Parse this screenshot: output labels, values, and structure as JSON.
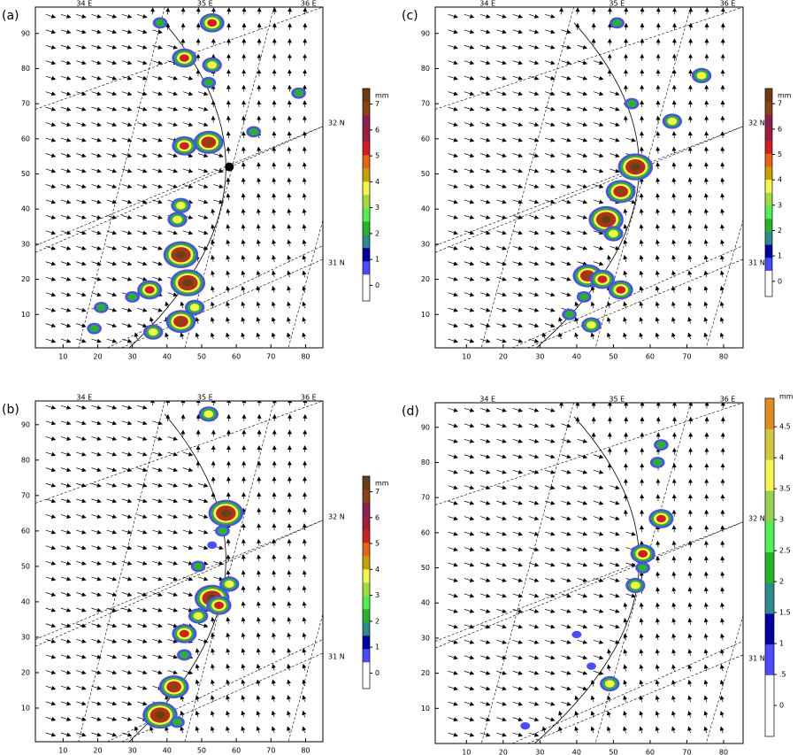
{
  "panels": [
    {
      "label": "(a)",
      "xlim": [
        2,
        85
      ],
      "ylim": [
        0.5,
        97.5
      ],
      "xticks": [
        10,
        20,
        30,
        40,
        50,
        60,
        70,
        80
      ],
      "yticks": [
        10,
        20,
        30,
        40,
        50,
        60,
        70,
        80,
        90
      ],
      "lon_labels": [
        "34 E",
        "35 E",
        "36 E"
      ],
      "lat_labels": [
        "32 N",
        "31 N"
      ],
      "colorbar": {
        "unit": "mm",
        "lim": [
          -0.6,
          7.6
        ],
        "ticks": [
          0,
          1,
          2,
          3,
          4,
          5,
          6,
          7
        ],
        "colors": [
          "#ffffff",
          "#ffffff",
          "#4b4bff",
          "#0000a0",
          "#2e8b8b",
          "#28b428",
          "#50f050",
          "#a0dc3c",
          "#f5f54b",
          "#c8a000",
          "#e66414",
          "#d21e1e",
          "#a01e3c",
          "#8c1e50",
          "#8b4513",
          "#6e3c14"
        ]
      }
    },
    {
      "label": "(c)",
      "xlim": [
        1.5,
        85.3
      ],
      "ylim": [
        0.5,
        97.5
      ],
      "xticks": [
        10,
        20,
        30,
        40,
        50,
        60,
        70,
        80
      ],
      "yticks": [
        10,
        20,
        30,
        40,
        50,
        60,
        70,
        80,
        90
      ],
      "lon_labels": [
        "34 E",
        "35 E",
        "36 E"
      ],
      "lat_labels": [
        "32 N",
        "31 N"
      ],
      "colorbar": {
        "unit": "mm",
        "lim": [
          -0.6,
          7.6
        ],
        "ticks": [
          0,
          1,
          2,
          3,
          4,
          5,
          6,
          7
        ],
        "colors": [
          "#ffffff",
          "#ffffff",
          "#4b4bff",
          "#0000a0",
          "#2e8b8b",
          "#28b428",
          "#50f050",
          "#a0dc3c",
          "#f5f54b",
          "#c8a000",
          "#e66414",
          "#d21e1e",
          "#a01e3c",
          "#8c1e50",
          "#8b4513",
          "#6e3c14"
        ]
      }
    },
    {
      "label": "(b)",
      "xlim": [
        2,
        85
      ],
      "ylim": [
        0.5,
        96.7
      ],
      "xticks": [
        10,
        20,
        30,
        40,
        50,
        60,
        70,
        80
      ],
      "yticks": [
        10,
        20,
        30,
        40,
        50,
        60,
        70,
        80,
        90
      ],
      "lon_labels": [
        "34 E",
        "35 E",
        "36 E"
      ],
      "lat_labels": [
        "32 N",
        "31 N"
      ],
      "colorbar": {
        "unit": "mm",
        "lim": [
          -0.6,
          7.6
        ],
        "ticks": [
          0,
          1,
          2,
          3,
          4,
          5,
          6,
          7
        ],
        "colors": [
          "#ffffff",
          "#ffffff",
          "#4b4bff",
          "#0000a0",
          "#2e8b8b",
          "#28b428",
          "#50f050",
          "#a0dc3c",
          "#f5f54b",
          "#c8a000",
          "#e66414",
          "#d21e1e",
          "#a01e3c",
          "#8c1e50",
          "#8b4513",
          "#6e3c14"
        ]
      }
    },
    {
      "label": "(d)",
      "xlim": [
        1.5,
        85.3
      ],
      "ylim": [
        0,
        97
      ],
      "xticks": [
        10,
        20,
        30,
        40,
        50,
        60,
        70,
        80
      ],
      "yticks": [
        10,
        20,
        30,
        40,
        50,
        60,
        70,
        80,
        90
      ],
      "lon_labels": [
        "34 E",
        "35 E",
        "36 E"
      ],
      "lat_labels": [
        "32 N",
        "31 N"
      ],
      "colorbar": {
        "unit": "mm",
        "lim": [
          -0.5,
          4.96
        ],
        "ticks": [
          0,
          {
            "value": 0.5,
            "label": ".5"
          },
          1,
          1.5,
          2,
          2.5,
          3,
          3.5,
          4,
          4.5
        ],
        "colors": [
          "#ffffff",
          "#ffffff",
          "#4b4bff",
          "#0000a0",
          "#2e8b8b",
          "#28b428",
          "#50f050",
          "#96d250",
          "#f5f54b",
          "#d2c83c",
          "#e08c1e"
        ]
      }
    }
  ]
}
